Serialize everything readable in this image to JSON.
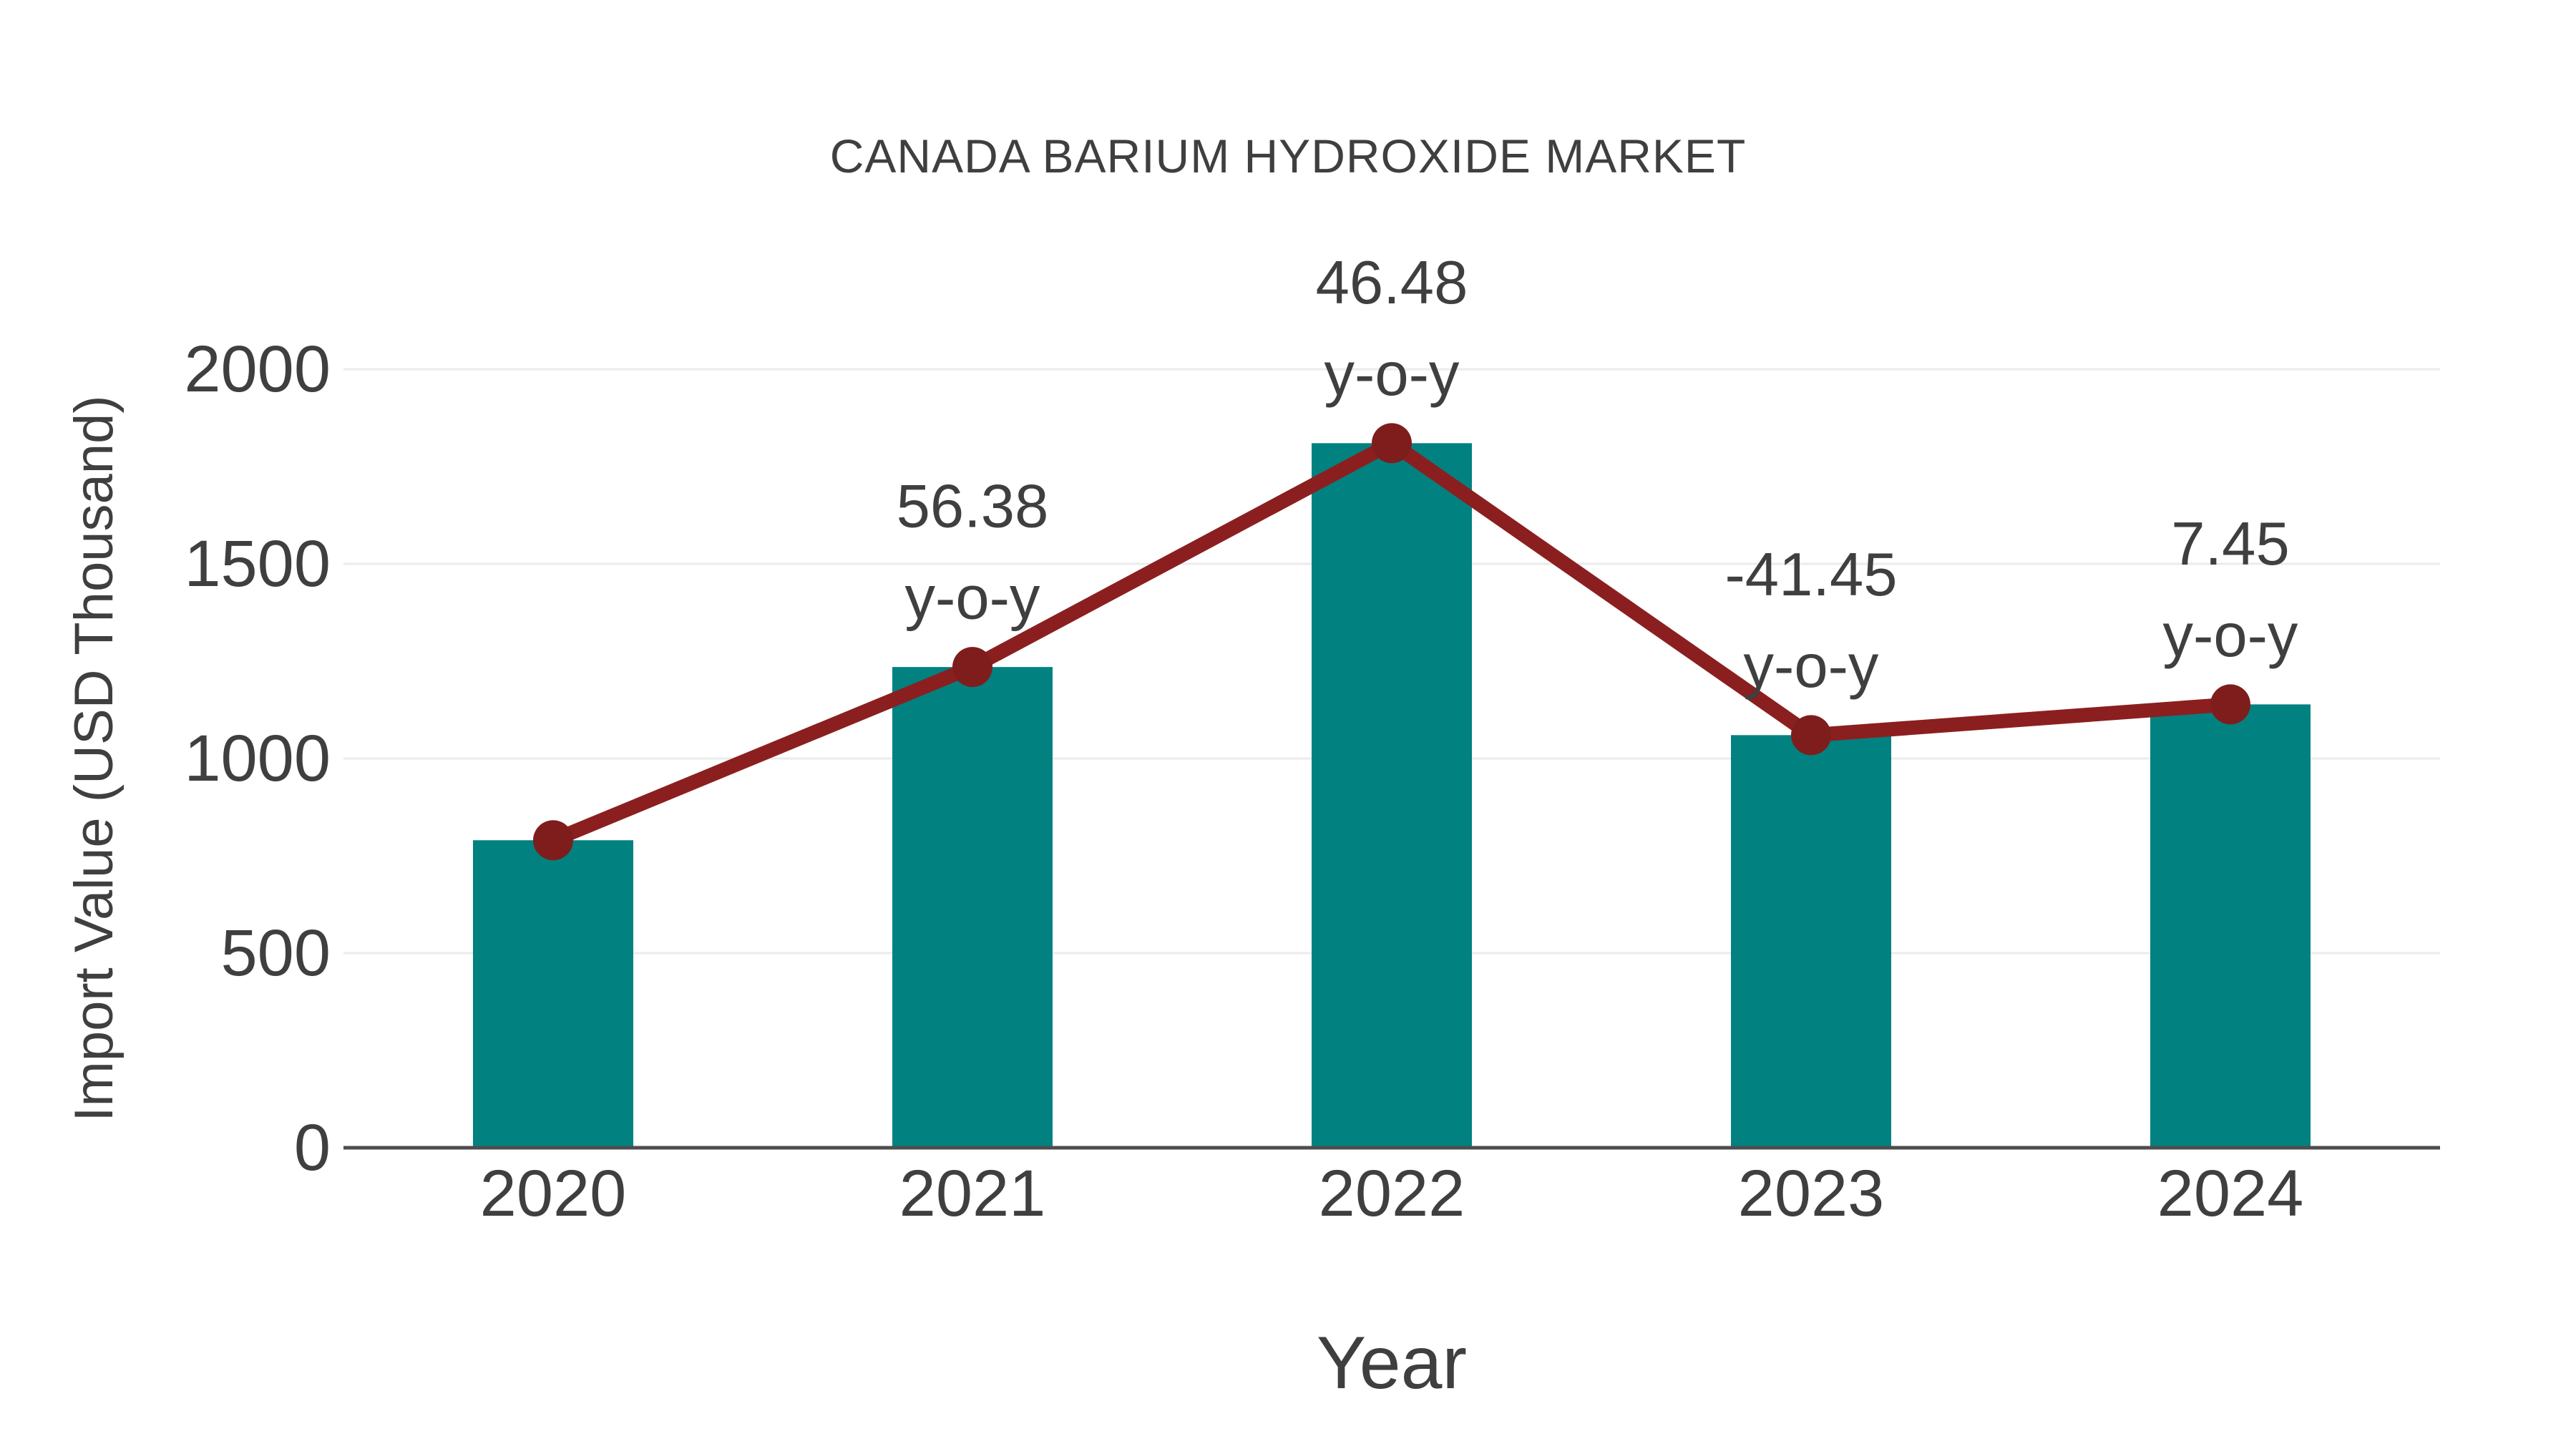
{
  "chart_data": {
    "type": "bar",
    "title": "CANADA BARIUM HYDROXIDE MARKET",
    "xlabel": "Year",
    "ylabel": "Import Value (USD Thousand)",
    "categories": [
      "2020",
      "2021",
      "2022",
      "2023",
      "2024"
    ],
    "series": [
      {
        "name": "Import Value (USD Thousand)",
        "type": "bar",
        "values": [
          790,
          1235,
          1810,
          1060,
          1139
        ]
      },
      {
        "name": "y-o-y trend line",
        "type": "line",
        "values": [
          790,
          1235,
          1810,
          1060,
          1139
        ]
      }
    ],
    "point_labels": [
      {
        "category": "2021",
        "line1": "56.38",
        "line2": "y-o-y"
      },
      {
        "category": "2022",
        "line1": "46.48",
        "line2": "y-o-y"
      },
      {
        "category": "2023",
        "line1": "-41.45",
        "line2": "y-o-y"
      },
      {
        "category": "2024",
        "line1": "7.45",
        "line2": "y-o-y"
      }
    ],
    "yticks": [
      0,
      500,
      1000,
      1500,
      2000
    ],
    "ylim": [
      0,
      2000
    ],
    "grid": "horizontal-only",
    "legend": "none"
  },
  "colors": {
    "bar": "#028181",
    "line": "#8b1f1f",
    "marker": "#7f1d1d",
    "gridline": "#ebebeb",
    "axis_line": "#4d4d4d",
    "text": "#3f3f3f",
    "background": "#ffffff"
  }
}
